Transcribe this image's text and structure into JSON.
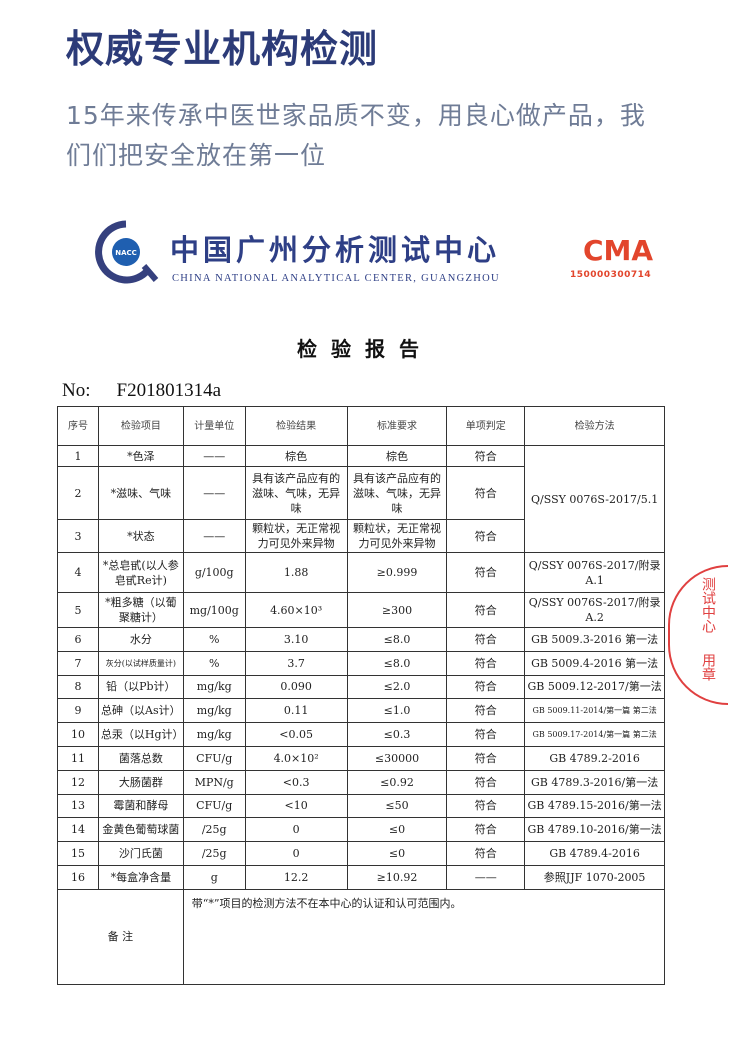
{
  "header": {
    "title": "权威专业机构检测",
    "subtitle": "15年来传承中医世家品质不变，用良心做产品，我们们把安全放在第一位"
  },
  "org": {
    "name_cn": "中国广州分析测试中心",
    "name_en": "CHINA NATIONAL ANALYTICAL CENTER, GUANGZHOU",
    "logo_text": "NACC",
    "cma_text": "CMA",
    "cma_number": "150000300714",
    "brand_color": "#2e3f86",
    "cma_color": "#e2452c"
  },
  "report": {
    "title": "检验报告",
    "no_label": "No:",
    "no_value": "F201801314a"
  },
  "table": {
    "headers": [
      "序号",
      "检验项目",
      "计量单位",
      "检验结果",
      "标准要求",
      "单项判定",
      "检验方法"
    ],
    "rows": [
      [
        "1",
        "*色泽",
        "——",
        "棕色",
        "棕色",
        "符合",
        "Q/SSY 0076S-2017/5.1"
      ],
      [
        "2",
        "*滋味、气味",
        "——",
        "具有该产品应有的滋味、气味，无异味",
        "具有该产品应有的滋味、气味，无异味",
        "符合",
        null
      ],
      [
        "3",
        "*状态",
        "——",
        "颗粒状，无正常视力可见外来异物",
        "颗粒状，无正常视力可见外来异物",
        "符合",
        null
      ],
      [
        "4",
        "*总皂甙(以人参皂甙Re计)",
        "g/100g",
        "1.88",
        "≥0.999",
        "符合",
        "Q/SSY 0076S-2017/附录A.1"
      ],
      [
        "5",
        "*粗多糖（以葡聚糖计）",
        "mg/100g",
        "4.60×10³",
        "≥300",
        "符合",
        "Q/SSY 0076S-2017/附录A.2"
      ],
      [
        "6",
        "水分",
        "%",
        "3.10",
        "≤8.0",
        "符合",
        "GB 5009.3-2016 第一法"
      ],
      [
        "7",
        "灰分(以试样质量计)",
        "%",
        "3.7",
        "≤8.0",
        "符合",
        "GB 5009.4-2016 第一法"
      ],
      [
        "8",
        "铅（以Pb计）",
        "mg/kg",
        "0.090",
        "≤2.0",
        "符合",
        "GB 5009.12-2017/第一法"
      ],
      [
        "9",
        "总砷（以As计）",
        "mg/kg",
        "0.11",
        "≤1.0",
        "符合",
        "GB 5009.11-2014/第一篇 第二法"
      ],
      [
        "10",
        "总汞（以Hg计）",
        "mg/kg",
        "<0.05",
        "≤0.3",
        "符合",
        "GB 5009.17-2014/第一篇 第二法"
      ],
      [
        "11",
        "菌落总数",
        "CFU/g",
        "4.0×10²",
        "≤30000",
        "符合",
        "GB 4789.2-2016"
      ],
      [
        "12",
        "大肠菌群",
        "MPN/g",
        "<0.3",
        "≤0.92",
        "符合",
        "GB 4789.3-2016/第一法"
      ],
      [
        "13",
        "霉菌和酵母",
        "CFU/g",
        "<10",
        "≤50",
        "符合",
        "GB 4789.15-2016/第一法"
      ],
      [
        "14",
        "金黄色葡萄球菌",
        "/25g",
        "0",
        "≤0",
        "符合",
        "GB 4789.10-2016/第一法"
      ],
      [
        "15",
        "沙门氏菌",
        "/25g",
        "0",
        "≤0",
        "符合",
        "GB 4789.4-2016"
      ],
      [
        "16",
        "*每盒净含量",
        "g",
        "12.2",
        "≥10.92",
        "——",
        "参照JJF 1070-2005"
      ]
    ],
    "remark_label": "备 注",
    "remark_text": "带“*”项目的检测方法不在本中心的认证和认可范围内。"
  },
  "stamp": {
    "text": "测试中心",
    "suffix": "用章",
    "color": "#e04040"
  }
}
